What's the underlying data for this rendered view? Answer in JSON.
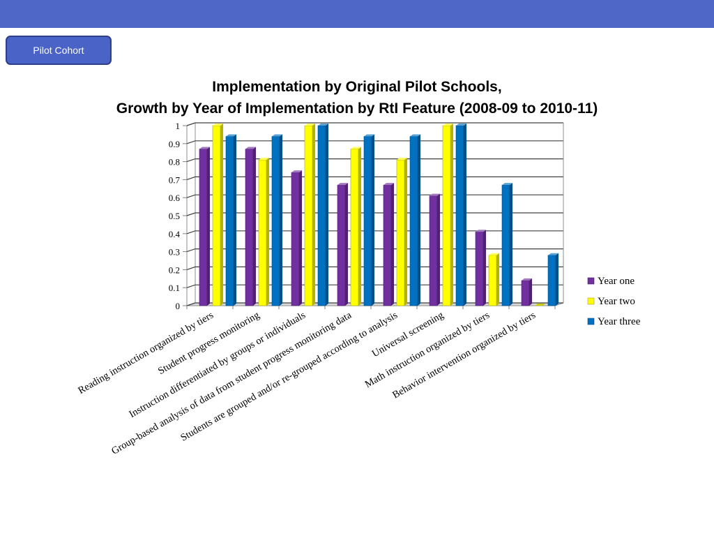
{
  "header": {
    "badge_label": "Pilot Cohort"
  },
  "chart_data": {
    "type": "bar",
    "title_line1": "Implementation by Original Pilot Schools,",
    "title_line2": "Growth by Year of Implementation by RtI Feature (2008-09 to 2010-11)",
    "categories": [
      "Reading instruction organized by tiers",
      "Student progress monitoring",
      "Instruction differentiated by groups or individuals",
      "Group-based analysis of data from student progress monitoring data",
      "Students are grouped and/or re-grouped according to analysis",
      "Universal screening",
      "Math instruction organized by tiers",
      "Behavior intervention organized by tiers"
    ],
    "series": [
      {
        "name": "Year one",
        "color": "#7030a0",
        "values": [
          0.87,
          0.87,
          0.74,
          0.67,
          0.67,
          0.61,
          0.41,
          0.14
        ]
      },
      {
        "name": "Year two",
        "color": "#ffff00",
        "values": [
          1.0,
          0.81,
          1.0,
          0.87,
          0.81,
          1.0,
          0.28,
          0.0
        ]
      },
      {
        "name": "Year three",
        "color": "#0070c0",
        "values": [
          0.94,
          0.94,
          1.0,
          0.94,
          0.94,
          1.0,
          0.67,
          0.28
        ]
      }
    ],
    "ylim": [
      0,
      1
    ],
    "yticks": [
      "0",
      "0.1",
      "0.2",
      "0.3",
      "0.4",
      "0.5",
      "0.6",
      "0.7",
      "0.8",
      "0.9",
      "1"
    ],
    "grid": true,
    "legend_position": "right"
  }
}
